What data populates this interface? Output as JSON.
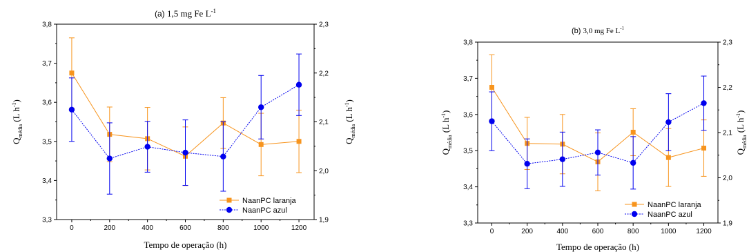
{
  "chart_data": [
    {
      "type": "line",
      "panel": "(a)",
      "title": "1,5 mg Fe L",
      "title_sup": "-1",
      "xlabel": "Tempo de operação (h)",
      "ylabel_left": "Q",
      "ylabel_left_sub": "média",
      "ylabel_left_unit": " (L h",
      "ylabel_left_sup": "-1",
      "ylabel_left_close": ")",
      "ylabel_right": "Q",
      "ylabel_right_sub": "média",
      "ylabel_right_unit": " (L h",
      "ylabel_right_sup": "-1",
      "ylabel_right_close": ")",
      "x": [
        0,
        200,
        400,
        600,
        800,
        1000,
        1200
      ],
      "xlim": [
        -80,
        1280
      ],
      "xticks": [
        "0",
        "200",
        "400",
        "600",
        "800",
        "1000",
        "1200"
      ],
      "ylim_left": [
        3.3,
        3.8
      ],
      "yticks_left": [
        "3,3",
        "3,4",
        "3,5",
        "3,6",
        "3,7",
        "3,8"
      ],
      "ylim_right": [
        1.9,
        2.3
      ],
      "yticks_right": [
        "1,9",
        "2,0",
        "2,1",
        "2,2",
        "2,3"
      ],
      "legend_position": "bottom-right",
      "series": [
        {
          "name": "NaanPC laranja",
          "axis": "left",
          "color": "#f7941d",
          "marker": "square",
          "line": "solid",
          "values": [
            3.675,
            3.518,
            3.507,
            3.462,
            3.547,
            3.492,
            3.5
          ],
          "errors": [
            0.09,
            0.07,
            0.08,
            0.075,
            0.065,
            0.08,
            0.08
          ]
        },
        {
          "name": "NaanPC azul",
          "axis": "right",
          "color": "#0000ee",
          "marker": "circle",
          "line": "dotted",
          "values": [
            2.125,
            2.025,
            2.049,
            2.037,
            2.029,
            2.13,
            2.176
          ],
          "errors": [
            0.065,
            0.073,
            0.052,
            0.067,
            0.071,
            0.065,
            0.063
          ]
        }
      ]
    },
    {
      "type": "line",
      "panel": "(b)",
      "title": "3,0 mg Fe L",
      "title_sup": "-1",
      "xlabel": "Tempo de operação (h)",
      "ylabel_left": "Q",
      "ylabel_left_sub": "média",
      "ylabel_left_unit": " (L h",
      "ylabel_left_sup": "-1",
      "ylabel_left_close": ")",
      "ylabel_right": "Q",
      "ylabel_right_sub": "média",
      "ylabel_right_unit": " (L h",
      "ylabel_right_sup": "-1",
      "ylabel_right_close": ")",
      "x": [
        0,
        200,
        400,
        600,
        800,
        1000,
        1200
      ],
      "xlim": [
        -80,
        1280
      ],
      "xticks": [
        "0",
        "200",
        "400",
        "600",
        "800",
        "1000",
        "1200"
      ],
      "ylim_left": [
        3.3,
        3.8
      ],
      "yticks_left": [
        "3,3",
        "3,4",
        "3,5",
        "3,6",
        "3,7",
        "3,8"
      ],
      "ylim_right": [
        1.9,
        2.3
      ],
      "yticks_right": [
        "1,9",
        "2,0",
        "2,1",
        "2,2",
        "2,3"
      ],
      "legend_position": "bottom-right",
      "series": [
        {
          "name": "NaanPC laranja",
          "axis": "left",
          "color": "#f7941d",
          "marker": "square",
          "line": "solid",
          "values": [
            3.675,
            3.52,
            3.518,
            3.469,
            3.551,
            3.481,
            3.507
          ],
          "errors": [
            0.09,
            0.072,
            0.082,
            0.08,
            0.065,
            0.08,
            0.078
          ]
        },
        {
          "name": "NaanPC azul",
          "axis": "right",
          "color": "#0000ee",
          "marker": "circle",
          "line": "dotted",
          "values": [
            2.125,
            2.031,
            2.041,
            2.056,
            2.033,
            2.123,
            2.165
          ],
          "errors": [
            0.065,
            0.055,
            0.06,
            0.05,
            0.058,
            0.063,
            0.06
          ]
        }
      ]
    }
  ]
}
